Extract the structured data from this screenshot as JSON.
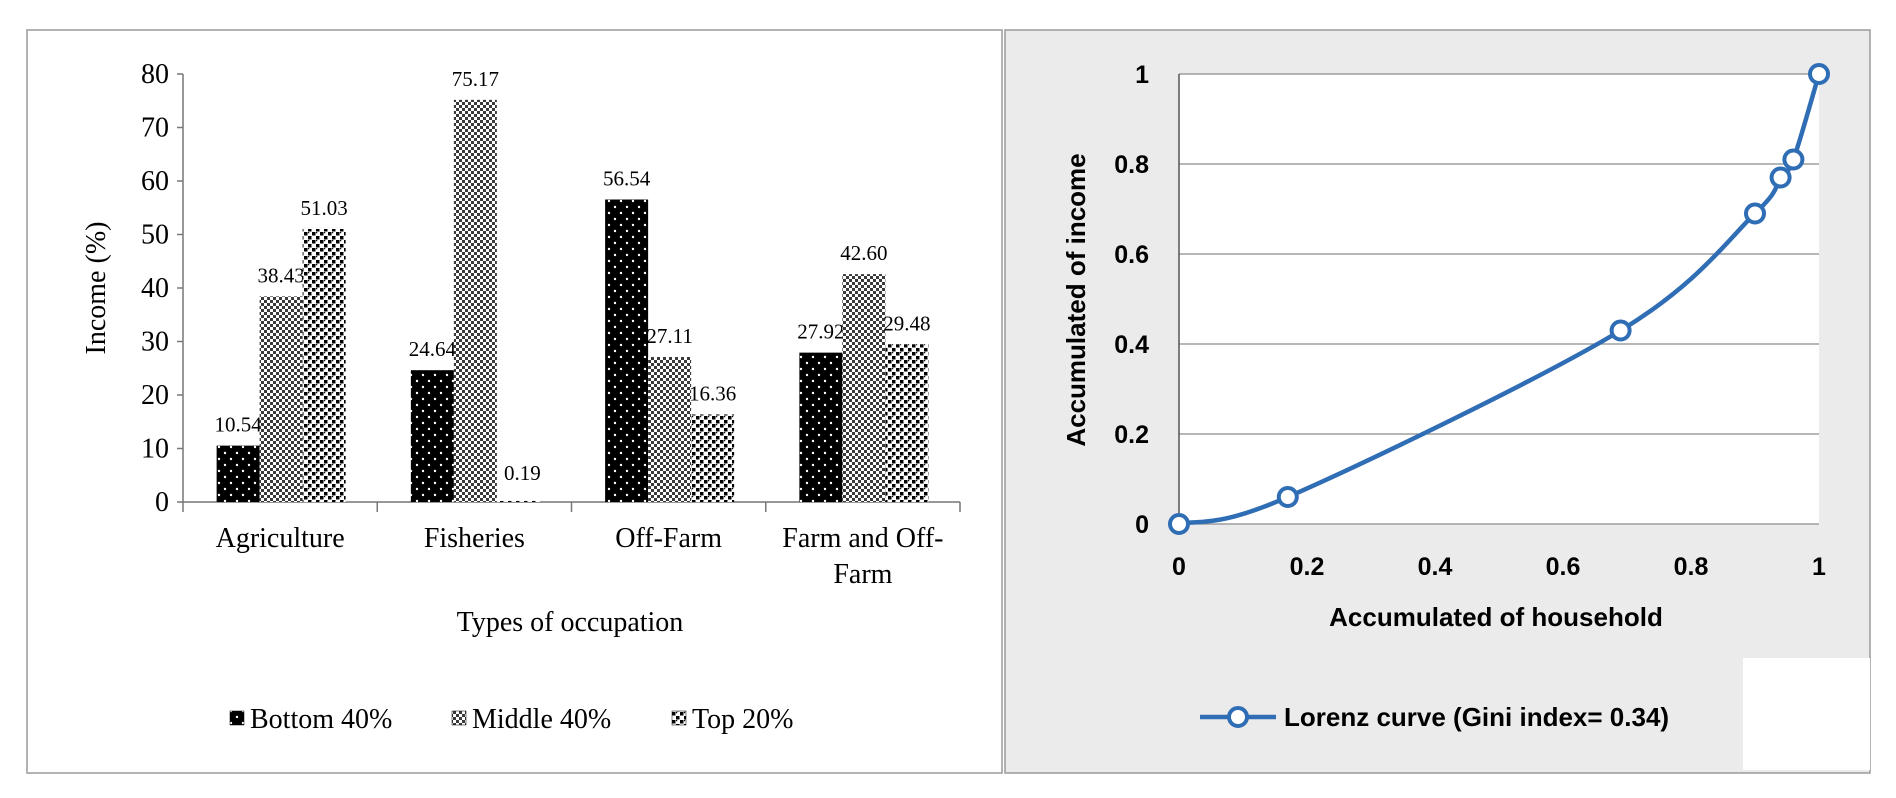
{
  "chart_data": [
    {
      "type": "bar",
      "ylabel": "Income (%)",
      "xlabel": "Types of occupation",
      "ylim": [
        0,
        80
      ],
      "yticks": [
        "0",
        "10",
        "20",
        "30",
        "40",
        "50",
        "60",
        "70",
        "80"
      ],
      "categories": [
        [
          "Agriculture"
        ],
        [
          "Fisheries"
        ],
        [
          "Off-Farm"
        ],
        [
          "Farm and Off-",
          "Farm"
        ]
      ],
      "series": [
        {
          "name": "Bottom 40%",
          "values": [
            10.54,
            24.64,
            56.54,
            27.92
          ],
          "labels": [
            "10.54",
            "24.64",
            "56.54",
            "27.92"
          ],
          "pattern": "dots-on-black"
        },
        {
          "name": "Middle 40%",
          "values": [
            38.43,
            75.17,
            27.11,
            42.6
          ],
          "labels": [
            "38.43",
            "75.17",
            "27.11",
            "42.60"
          ],
          "pattern": "checker-gray"
        },
        {
          "name": "Top 20%",
          "values": [
            51.03,
            0.19,
            16.36,
            29.48
          ],
          "labels": [
            "51.03",
            "0.19",
            "16.36",
            "29.48"
          ],
          "pattern": "black-dots-on-white"
        }
      ],
      "legend_position": "bottom",
      "grid": false
    },
    {
      "type": "line",
      "xlabel": "Accumulated of household",
      "ylabel": "Accumulated of income",
      "xlim": [
        0,
        1
      ],
      "ylim": [
        0,
        1
      ],
      "xticks": [
        "0",
        "0.2",
        "0.4",
        "0.6",
        "0.8",
        "1"
      ],
      "yticks": [
        "0",
        "0.2",
        "0.4",
        "0.6",
        "0.8",
        "1"
      ],
      "series": [
        {
          "name": "Lorenz curve (Gini index= 0.34)",
          "color": "#2f6db5",
          "points": [
            [
              0,
              0
            ],
            [
              0.17,
              0.06
            ],
            [
              0.69,
              0.43
            ],
            [
              0.9,
              0.69
            ],
            [
              0.94,
              0.77
            ],
            [
              0.96,
              0.81
            ],
            [
              1.0,
              1.0
            ]
          ]
        }
      ],
      "grid": "horizontal",
      "background": "#ebebeb",
      "legend_position": "bottom"
    }
  ]
}
